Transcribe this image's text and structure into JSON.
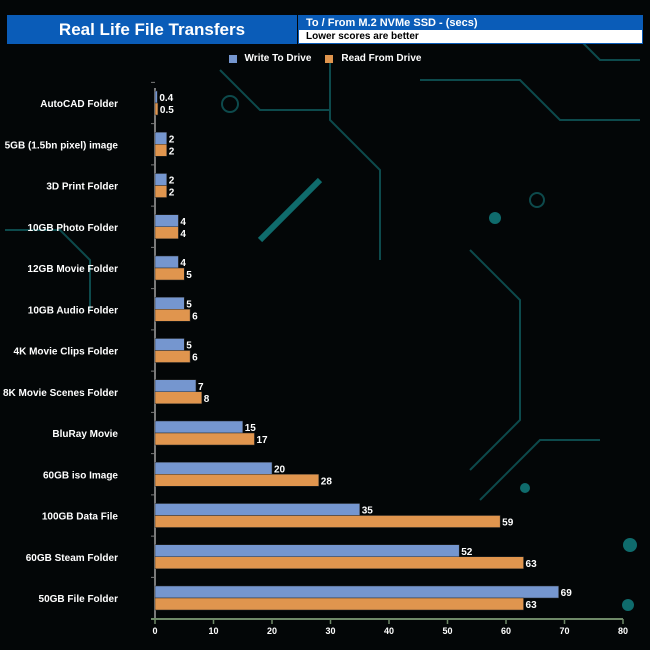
{
  "chart_data": {
    "type": "bar",
    "orientation": "horizontal",
    "title": "Real Life File Transfers",
    "subtitle": "To / From M.2 NVMe SSD - (secs)",
    "note": "Lower scores are better",
    "categories": [
      "AutoCAD Folder",
      "5GB (1.5bn pixel) image",
      "3D Print Folder",
      "10GB Photo Folder",
      "12GB Movie Folder",
      "10GB Audio Folder",
      "4K Movie Clips Folder",
      "8K Movie Scenes Folder",
      "BluRay Movie",
      "60GB iso Image",
      "100GB Data File",
      "60GB Steam Folder",
      "50GB File Folder"
    ],
    "series": [
      {
        "name": "Write To  Drive",
        "color": "#7596cf",
        "values": [
          0.4,
          2,
          2,
          4,
          4,
          5,
          5,
          7,
          15,
          20,
          35,
          52,
          69
        ]
      },
      {
        "name": "Read From  Drive",
        "color": "#e0954e",
        "values": [
          0.5,
          2,
          2,
          4,
          5,
          6,
          6,
          8,
          17,
          28,
          59,
          63,
          63
        ]
      }
    ],
    "xlim": [
      0,
      80
    ],
    "xticks": [
      0,
      10,
      20,
      30,
      40,
      50,
      60,
      70,
      80
    ],
    "legend": "top-center",
    "grid": false
  }
}
